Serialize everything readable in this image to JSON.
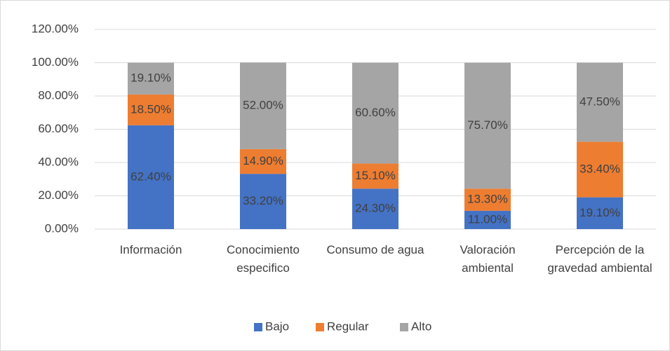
{
  "chart_data": {
    "type": "stacked_bar",
    "categories": [
      "Información",
      "Conocimiento especifico",
      "Consumo de agua",
      "Valoración ambiental",
      "Percepción de la gravedad ambiental"
    ],
    "series": [
      {
        "name": "Bajo",
        "color": "#4472c4",
        "values": [
          62.4,
          33.2,
          24.3,
          11.0,
          19.1
        ],
        "value_labels": [
          "62.40%",
          "33.20%",
          "24.30%",
          "11.00%",
          "19.10%"
        ]
      },
      {
        "name": "Regular",
        "color": "#ed7d31",
        "values": [
          18.5,
          14.9,
          15.1,
          13.3,
          33.4
        ],
        "value_labels": [
          "18.50%",
          "14.90%",
          "15.10%",
          "13.30%",
          "33.40%"
        ]
      },
      {
        "name": "Alto",
        "color": "#a5a5a5",
        "values": [
          19.1,
          52.0,
          60.6,
          75.7,
          47.5
        ],
        "value_labels": [
          "19.10%",
          "52.00%",
          "60.60%",
          "75.70%",
          "47.50%"
        ]
      }
    ],
    "ylim": [
      0,
      120
    ],
    "yticks": [
      {
        "value": 0,
        "label": "0.00%"
      },
      {
        "value": 20,
        "label": "20.00%"
      },
      {
        "value": 40,
        "label": "40.00%"
      },
      {
        "value": 60,
        "label": "60.00%"
      },
      {
        "value": 80,
        "label": "80.00%"
      },
      {
        "value": 100,
        "label": "100.00%"
      },
      {
        "value": 120,
        "label": "120.00%"
      }
    ],
    "grid": true,
    "legend": "bottom"
  }
}
